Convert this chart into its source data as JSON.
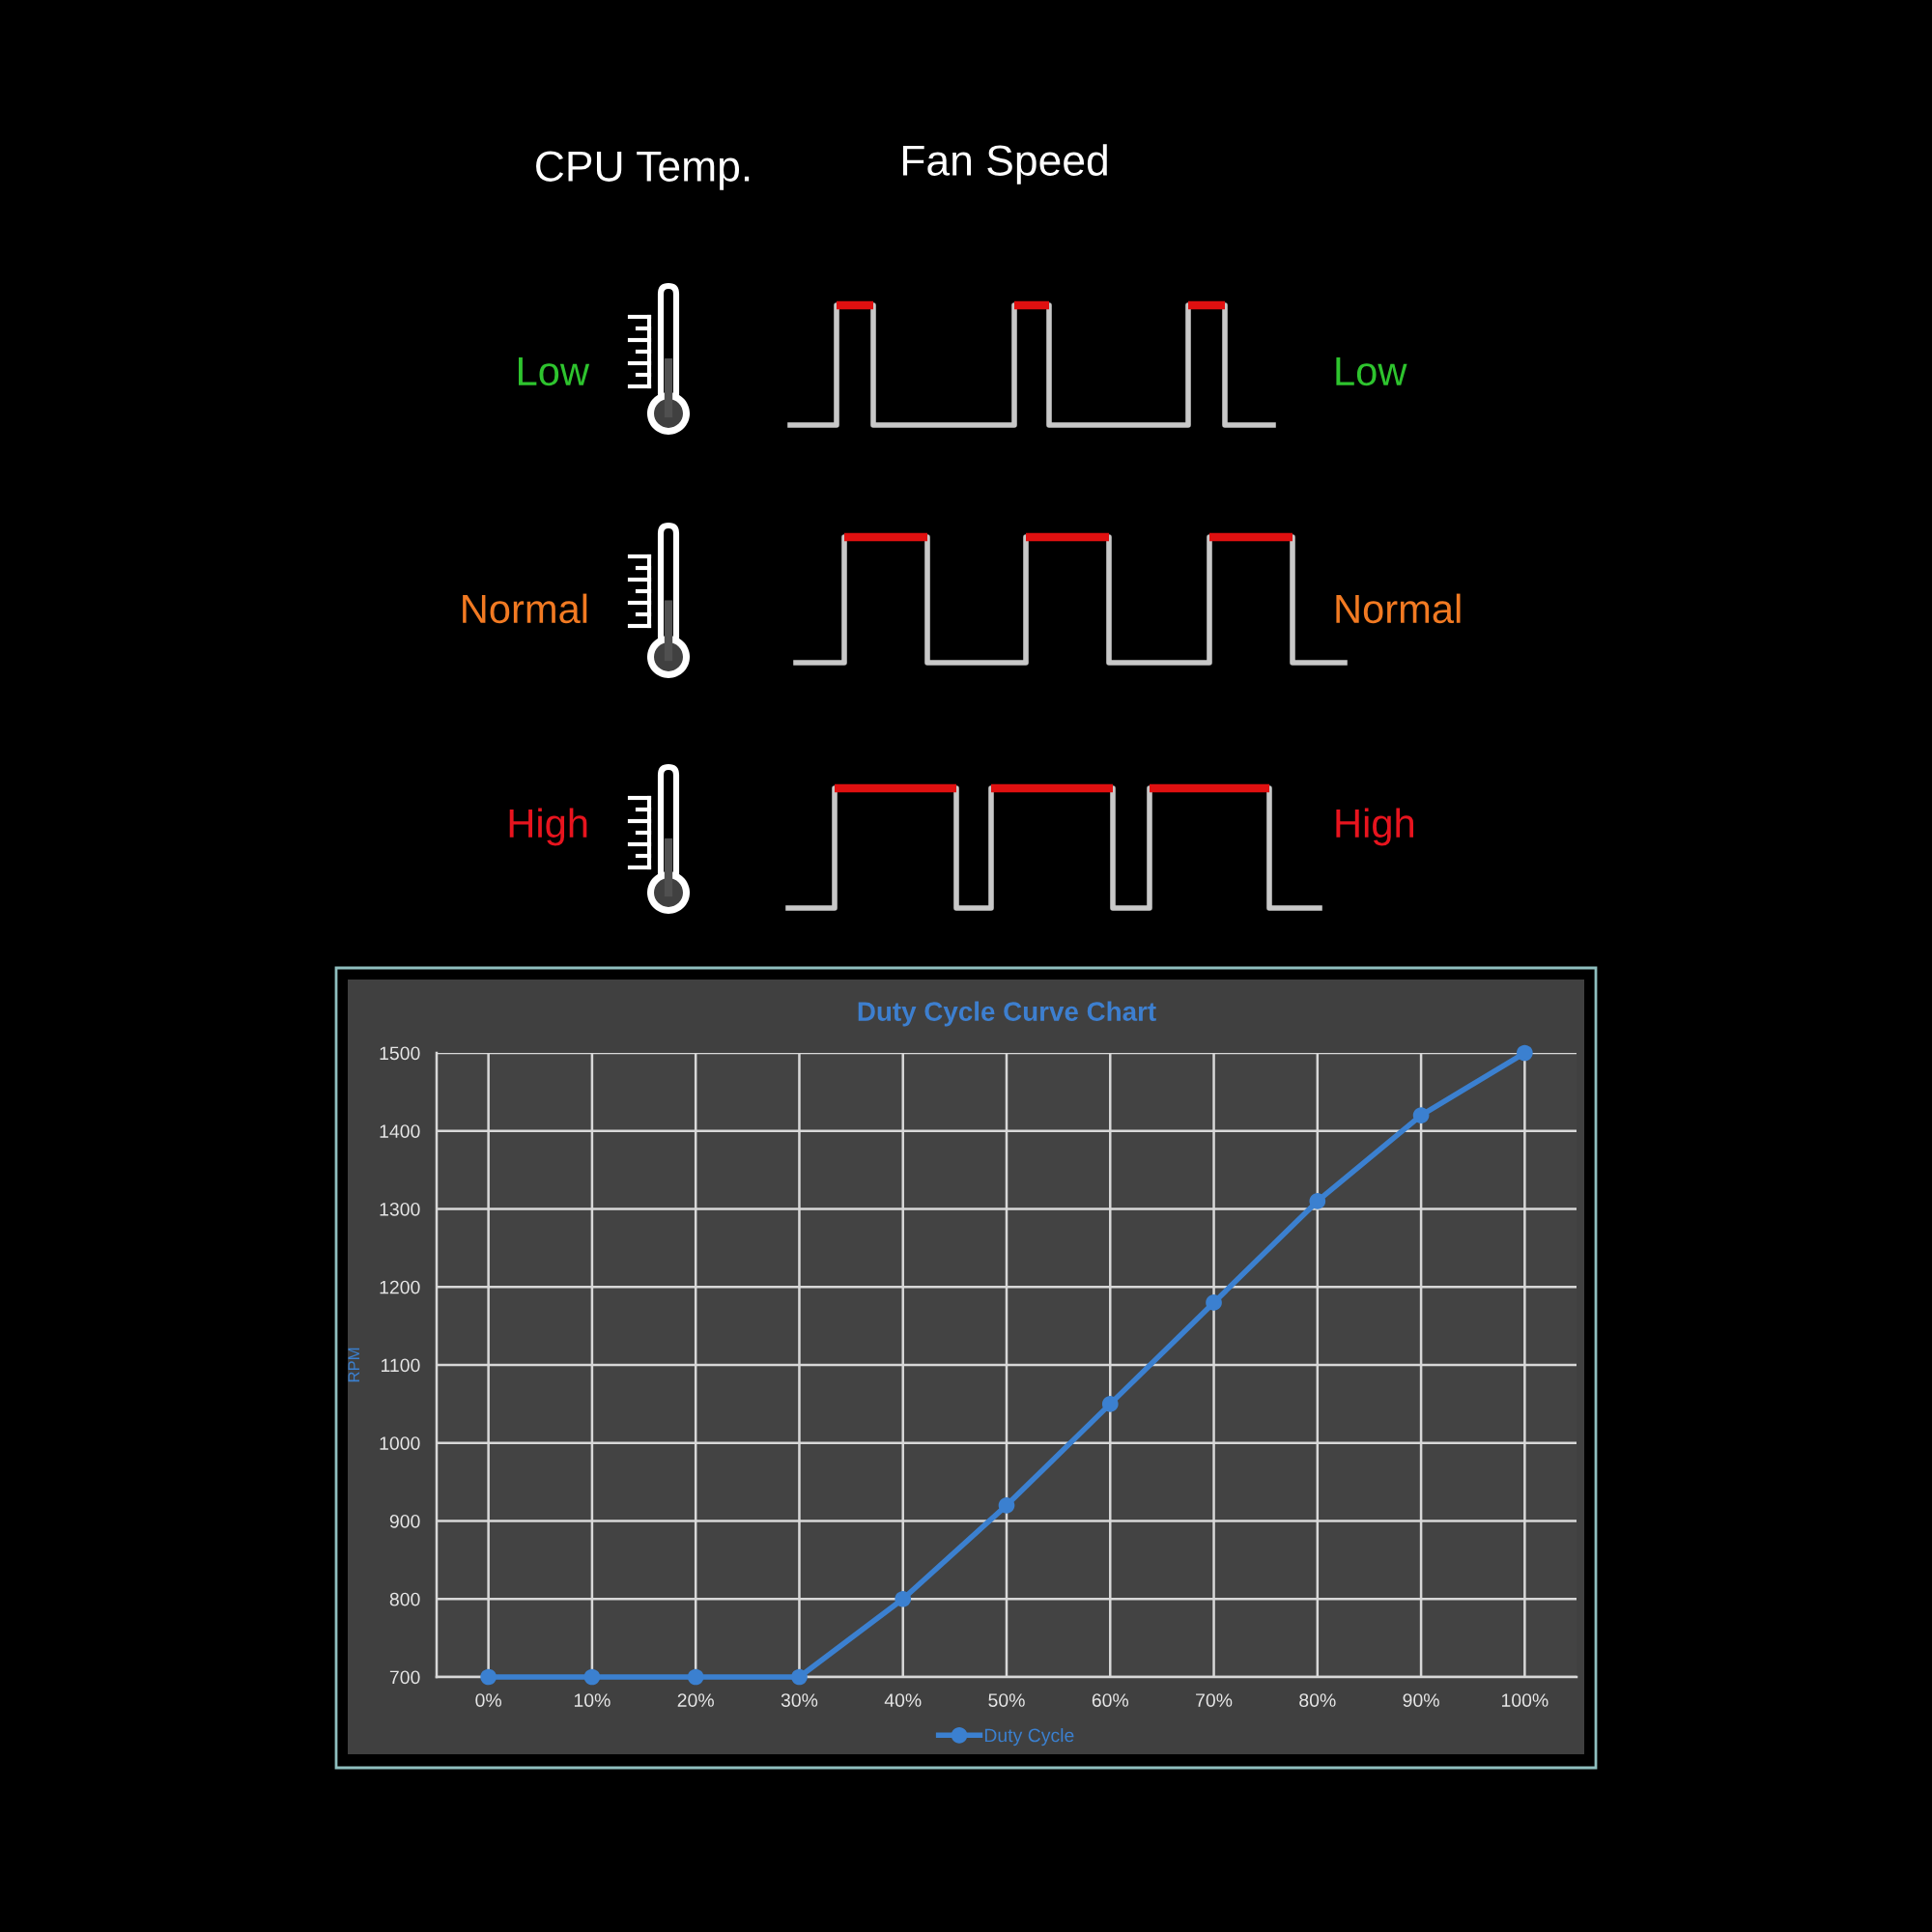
{
  "chart_data": [
    {
      "type": "other",
      "categories": [
        "CPU Temp.",
        "Fan Speed"
      ],
      "y_categories": [
        "Low",
        "Normal",
        "High"
      ],
      "y2_categories": [
        "Low",
        "Normal",
        "High"
      ],
      "colors": [
        "#2ec42e",
        "#f27a22",
        "#e8141e"
      ]
    },
    {
      "type": "line",
      "title": "Duty Cycle Curve Chart",
      "ylabel": "RPM",
      "categories": [
        "0%",
        "10%",
        "20%",
        "30%",
        "40%",
        "50%",
        "60%",
        "70%",
        "80%",
        "90%",
        "100%"
      ],
      "series": [
        {
          "name": "Duty Cycle",
          "color": "#3b80d0",
          "values": [
            700,
            700,
            700,
            700,
            800,
            920,
            1050,
            1180,
            1310,
            1420,
            1500
          ]
        }
      ],
      "ylim": [
        700,
        1500
      ],
      "yticks": [
        700,
        800,
        900,
        1000,
        1100,
        1200,
        1300,
        1400,
        1500
      ],
      "grid": true,
      "legend": "bottom",
      "marker": "circle",
      "line_style": "solid"
    }
  ]
}
